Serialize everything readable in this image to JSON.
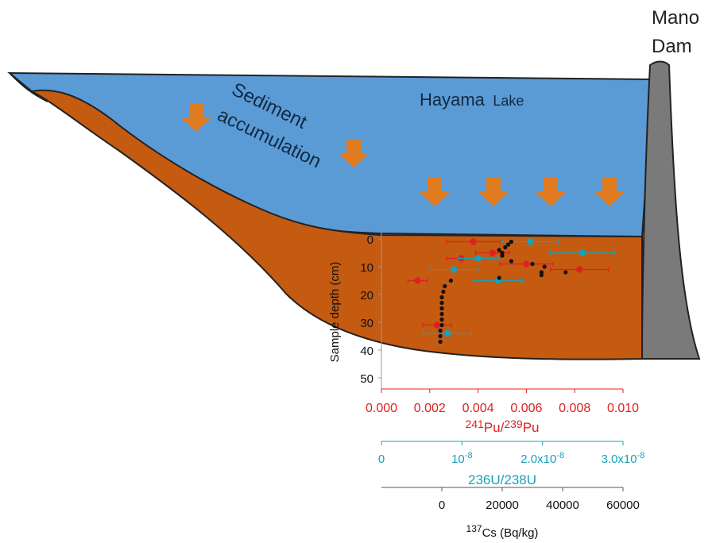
{
  "scene": {
    "dam_label_line1": "Mano",
    "dam_label_line2": "Dam",
    "lake_label_main": "Hayama",
    "lake_label_suffix": "Lake",
    "sediment_label_line1": "Sediment",
    "sediment_label_line2": "accumulation",
    "colors": {
      "water": "#5b9bd5",
      "sediment": "#c55a11",
      "dam": "#7a7a7a",
      "arrow": "#e07a1f",
      "pu_axis": "#e02020",
      "u_axis": "#1aa0b8",
      "cs_axis": "#222222"
    }
  },
  "chart_data": {
    "type": "scatter",
    "ylabel": "Sample depth (cm)",
    "ylim": [
      0,
      50
    ],
    "y_ticks": [
      "0",
      "10",
      "20",
      "30",
      "40",
      "50"
    ],
    "y_inverted": true,
    "axes": {
      "pu": {
        "label_sup1": "241",
        "label_mid1": "Pu/",
        "label_sup2": "239",
        "label_mid2": "Pu",
        "range": [
          0,
          0.01
        ],
        "ticks": [
          "0.000",
          "0.002",
          "0.004",
          "0.006",
          "0.008",
          "0.010"
        ],
        "color": "#e02020"
      },
      "u": {
        "label_main1": "236",
        "label_mid1": "U/",
        "label_main2": "238",
        "label_mid2": "U",
        "range": [
          0,
          3e-08
        ],
        "ticks": [
          "0",
          "10",
          "-8",
          "2.0x10",
          "-8",
          "3.0x10",
          "-8"
        ],
        "tick_texts": [
          {
            "base": "0",
            "exp": ""
          },
          {
            "base": "10",
            "exp": "-8"
          },
          {
            "base": "2.0x10",
            "exp": "-8"
          },
          {
            "base": "3.0x10",
            "exp": "-8"
          }
        ],
        "color": "#1aa0b8"
      },
      "cs": {
        "label_sup": "137",
        "label_main": "Cs (Bq/kg)",
        "range": [
          -20000,
          60000
        ],
        "ticks": [
          "0",
          "20000",
          "40000",
          "60000"
        ],
        "color": "#222222"
      }
    },
    "series": [
      {
        "name": "241Pu/239Pu",
        "color": "#e02020",
        "points": [
          {
            "x": 0.0038,
            "y": 1,
            "err": 0.0011
          },
          {
            "x": 0.0046,
            "y": 5,
            "err": 0.0007
          },
          {
            "x": 0.0033,
            "y": 7,
            "err": 0.0006
          },
          {
            "x": 0.006,
            "y": 9,
            "err": 0.0011
          },
          {
            "x": 0.0082,
            "y": 11,
            "err": 0.0012
          },
          {
            "x": 0.0015,
            "y": 15,
            "err": 0.0004
          },
          {
            "x": 0.0023,
            "y": 31,
            "err": 0.0006
          }
        ]
      },
      {
        "name": "236U/238U",
        "color": "#1aa0b8",
        "points": [
          {
            "x": 1.85e-08,
            "y": 1,
            "err": 3.5e-09
          },
          {
            "x": 2.5e-08,
            "y": 5,
            "err": 4e-09
          },
          {
            "x": 1.2e-08,
            "y": 7,
            "err": 2.5e-09
          },
          {
            "x": 9e-09,
            "y": 11,
            "err": 3e-09
          },
          {
            "x": 1.45e-08,
            "y": 15,
            "err": 3e-09
          },
          {
            "x": 8.2e-09,
            "y": 34,
            "err": 3e-09
          }
        ]
      },
      {
        "name": "137Cs",
        "color": "#111111",
        "points": [
          {
            "x": 23000,
            "y": 1
          },
          {
            "x": 22000,
            "y": 2
          },
          {
            "x": 21000,
            "y": 3
          },
          {
            "x": 19000,
            "y": 4
          },
          {
            "x": 20000,
            "y": 5
          },
          {
            "x": 20000,
            "y": 6
          },
          {
            "x": 23000,
            "y": 8
          },
          {
            "x": 30000,
            "y": 9
          },
          {
            "x": 34000,
            "y": 10
          },
          {
            "x": 33000,
            "y": 12
          },
          {
            "x": 41000,
            "y": 12
          },
          {
            "x": 33000,
            "y": 13
          },
          {
            "x": 19000,
            "y": 14
          },
          {
            "x": 3000,
            "y": 15
          },
          {
            "x": 1000,
            "y": 17
          },
          {
            "x": 500,
            "y": 19
          },
          {
            "x": 0,
            "y": 21
          },
          {
            "x": 0,
            "y": 23
          },
          {
            "x": 0,
            "y": 25
          },
          {
            "x": 0,
            "y": 27
          },
          {
            "x": 0,
            "y": 29
          },
          {
            "x": 0,
            "y": 31
          },
          {
            "x": -500,
            "y": 33
          },
          {
            "x": -500,
            "y": 35
          },
          {
            "x": -500,
            "y": 37
          }
        ]
      }
    ]
  }
}
